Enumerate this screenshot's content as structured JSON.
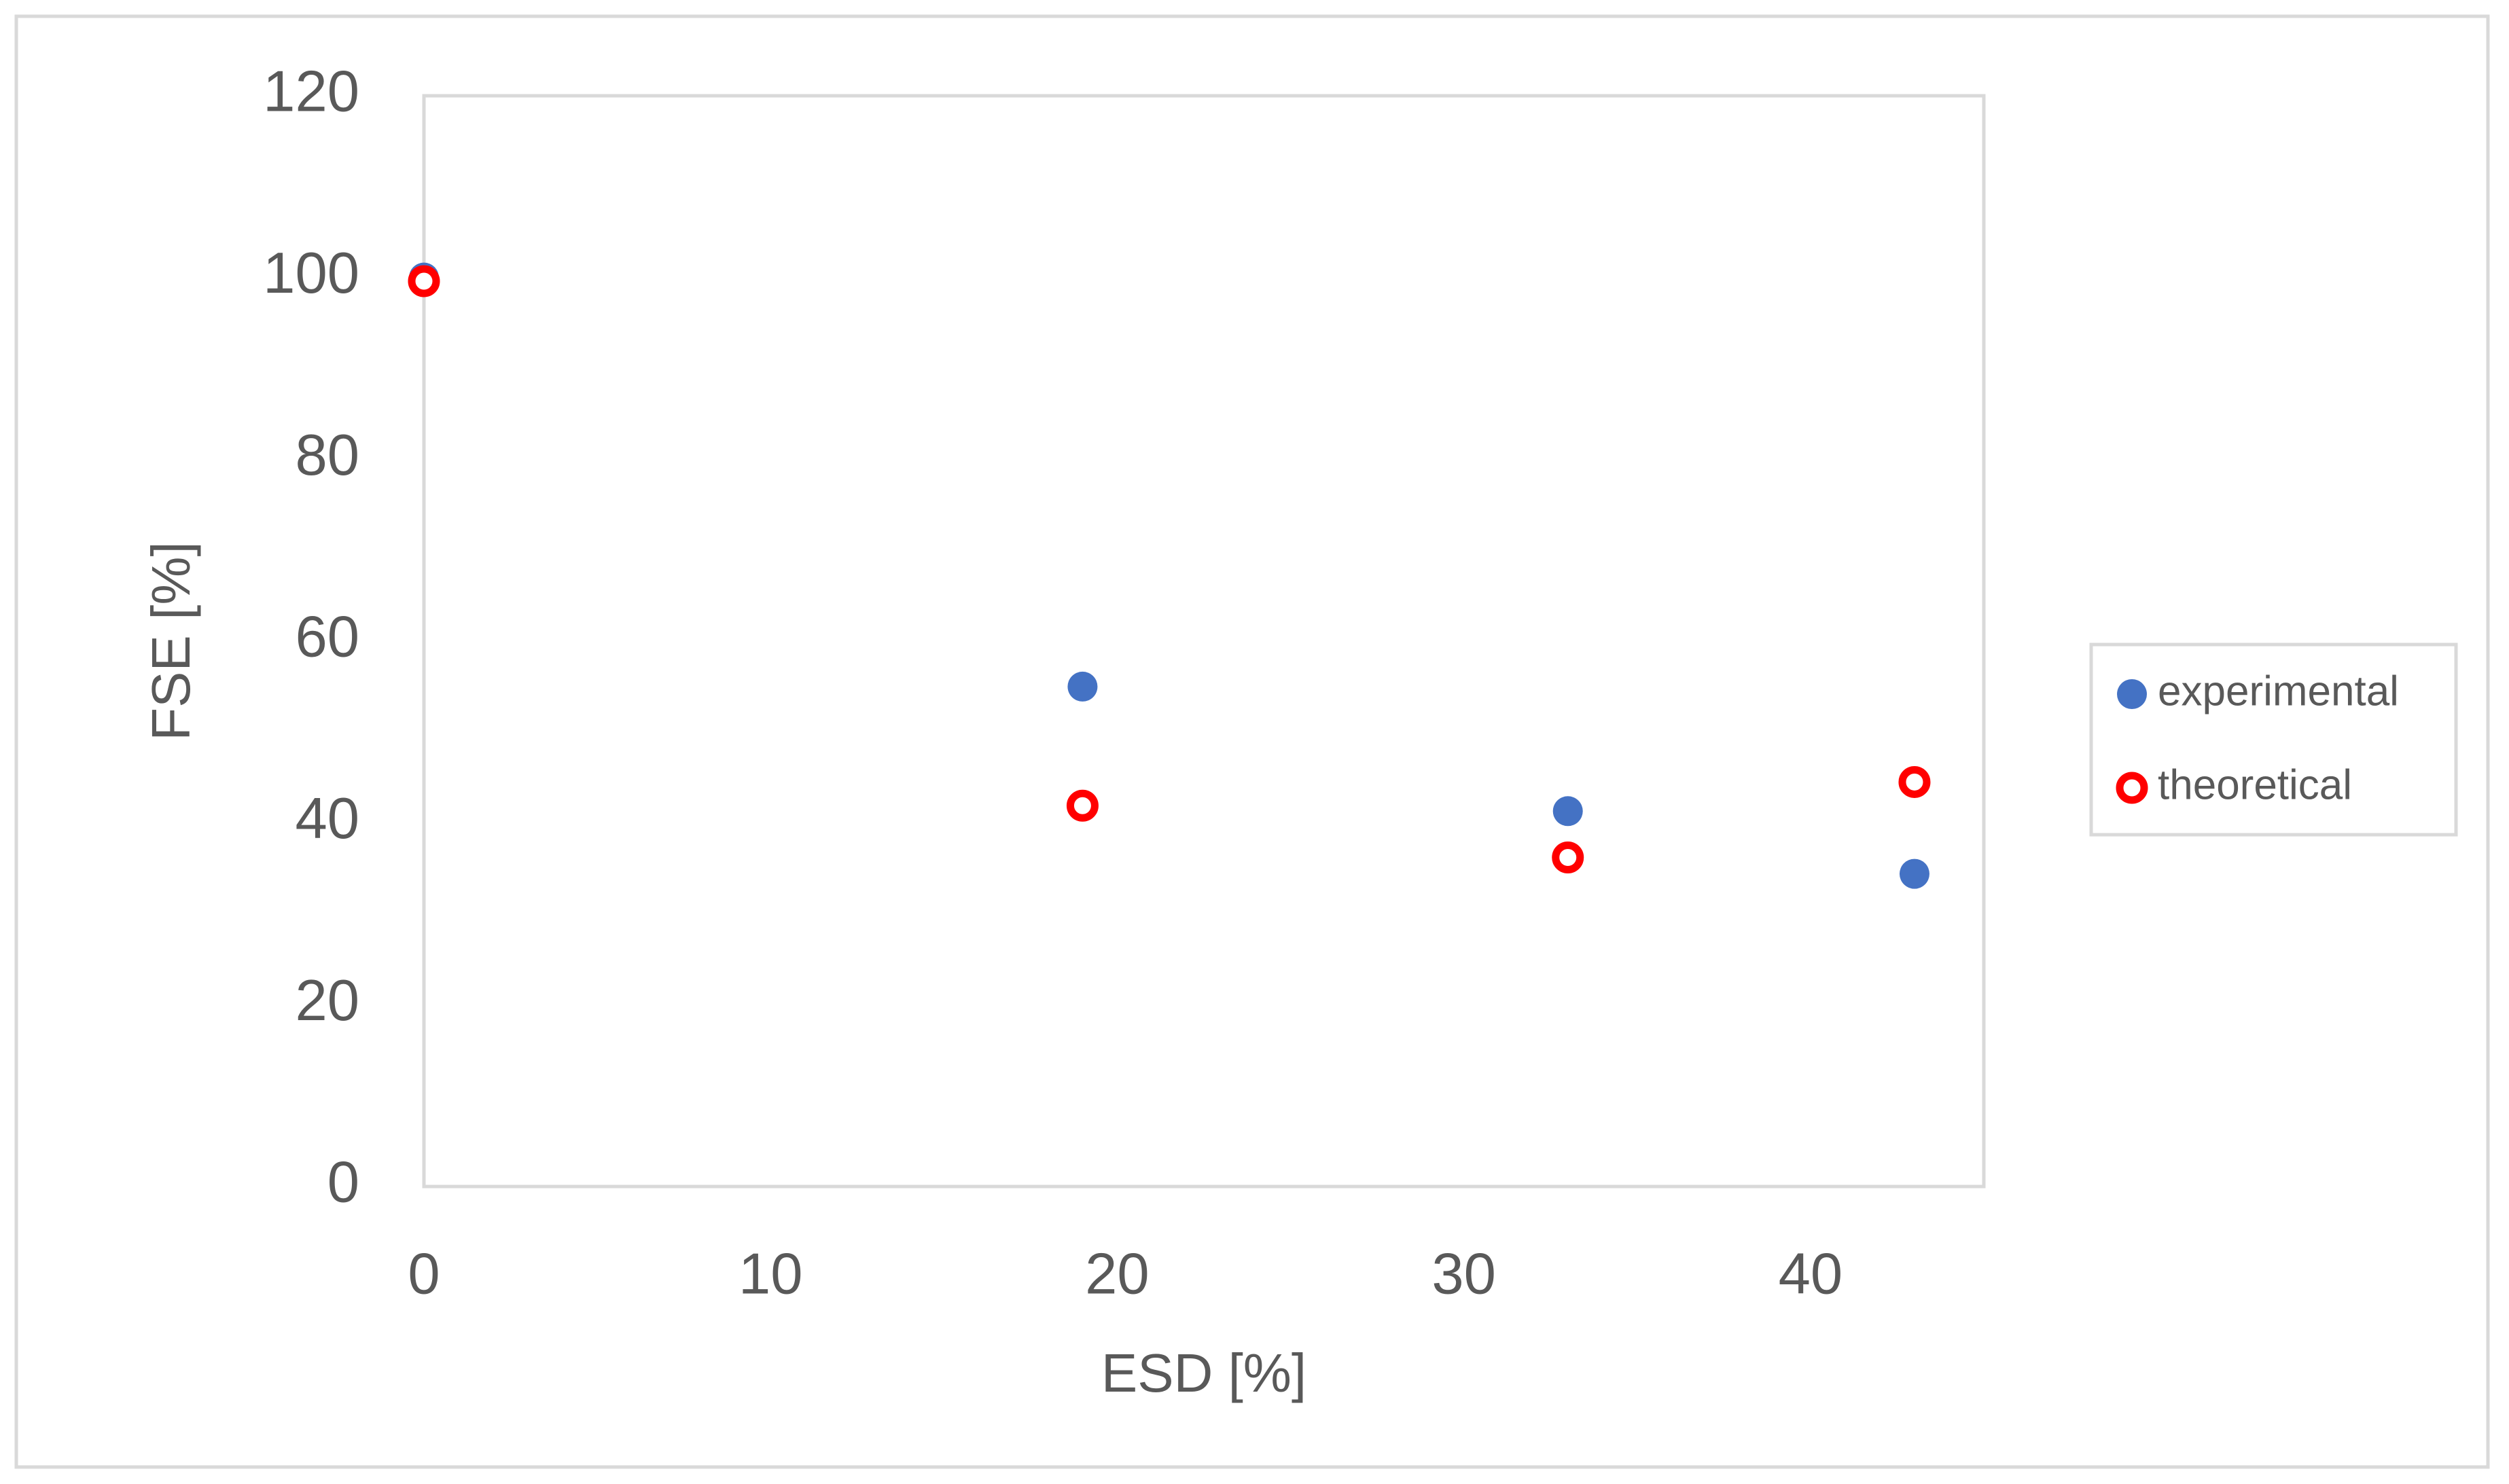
{
  "chart_data": {
    "type": "scatter",
    "x_label": "ESD [%]",
    "y_label": "FSE [%]",
    "xlim": [
      0,
      45
    ],
    "xticks": [
      0,
      10,
      20,
      30,
      40
    ],
    "ylim": [
      0,
      120
    ],
    "yticks": [
      0,
      20,
      40,
      60,
      80,
      100,
      120
    ],
    "legend": "right",
    "series": [
      {
        "name": "experimental",
        "color": "#4472c4",
        "marker": "filled",
        "x": [
          0,
          19,
          33,
          43
        ],
        "values": [
          100,
          55,
          41.3,
          34.4
        ]
      },
      {
        "name": "theoretical",
        "color": "#ff0000",
        "marker": "hollow",
        "x": [
          0,
          19,
          33,
          43
        ],
        "values": [
          99.6,
          41.9,
          36.2,
          44.5
        ]
      }
    ]
  }
}
